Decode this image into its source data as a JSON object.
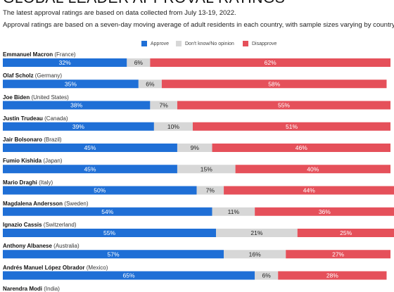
{
  "chart_data": {
    "type": "bar",
    "stacked": true,
    "orientation": "horizontal",
    "title": "GLOBAL LEADER APPROVAL RATINGS",
    "subtitle_lines": [
      "The latest approval ratings are based on data collected from July 13-19, 2022.",
      "Approval ratings are based on a seven-day moving average of adult residents in each country, with sample sizes varying by country."
    ],
    "legend_placement": "top-center",
    "categories": [
      {
        "name": "Emmanuel Macron",
        "country": "(France)"
      },
      {
        "name": "Olaf Scholz",
        "country": "(Germany)"
      },
      {
        "name": "Joe Biden",
        "country": "(United States)"
      },
      {
        "name": "Justin Trudeau",
        "country": "(Canada)"
      },
      {
        "name": "Jair Bolsonaro",
        "country": "(Brazil)"
      },
      {
        "name": "Fumio Kishida",
        "country": "(Japan)"
      },
      {
        "name": "Mario Draghi",
        "country": "(Italy)"
      },
      {
        "name": "Magdalena Andersson",
        "country": "(Sweden)"
      },
      {
        "name": "Ignazio Cassis",
        "country": "(Switzerland)"
      },
      {
        "name": "Anthony Albanese",
        "country": "(Australia)"
      },
      {
        "name": "Andrés Manuel López Obrador",
        "country": "(Mexico)"
      },
      {
        "name": "Narendra Modi",
        "country": "(India)"
      }
    ],
    "series": [
      {
        "name": "Approve",
        "color": "#1f6fd6",
        "label_color": "#ffffff",
        "values": [
          32,
          35,
          38,
          39,
          45,
          45,
          50,
          54,
          55,
          57,
          65,
          null
        ]
      },
      {
        "name": "Don't know/No opinion",
        "color": "#d7d7d7",
        "label_color": "#222222",
        "values": [
          6,
          6,
          7,
          10,
          9,
          15,
          7,
          11,
          21,
          16,
          6,
          null
        ]
      },
      {
        "name": "Disapprove",
        "color": "#e5505a",
        "label_color": "#ffffff",
        "values": [
          62,
          58,
          55,
          51,
          46,
          40,
          44,
          36,
          25,
          27,
          28,
          null
        ]
      }
    ],
    "value_suffix": "%",
    "xlim": [
      0,
      100
    ]
  }
}
